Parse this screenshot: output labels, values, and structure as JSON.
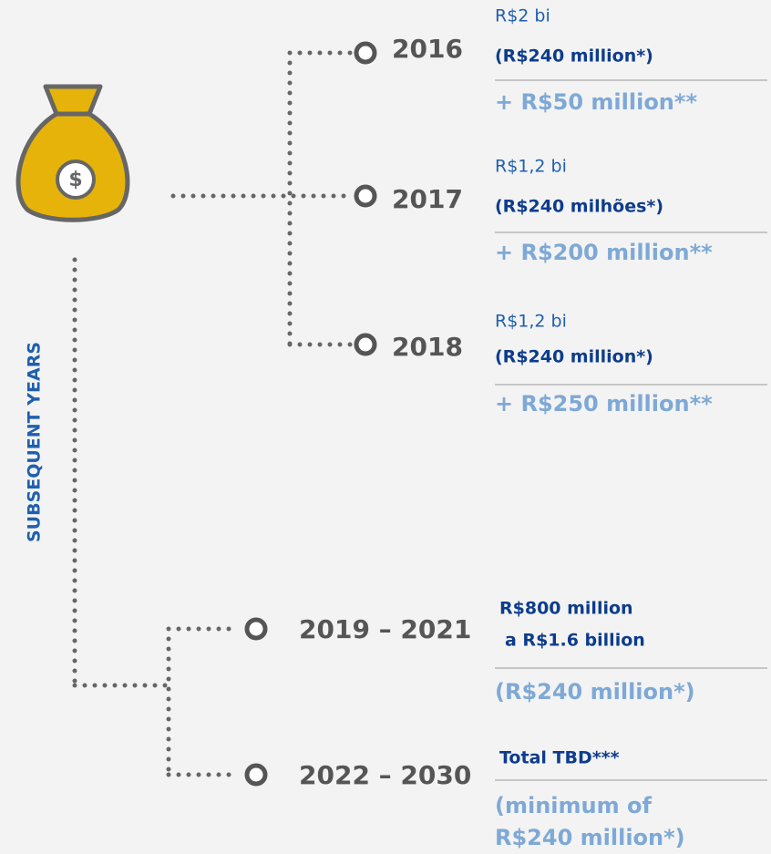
{
  "side_label": "SUBSEQUENT YEARS",
  "entries": [
    {
      "year": "2016",
      "lines": [
        "R$2 bi",
        "(R$240 million*)",
        "+ R$50 million**"
      ]
    },
    {
      "year": "2017",
      "lines": [
        "R$1,2 bi",
        "(R$240 milhões*)",
        "+ R$200 million**"
      ]
    },
    {
      "year": "2018",
      "lines": [
        "R$1,2 bi",
        "(R$240 million*)",
        "+ R$250 million**"
      ]
    },
    {
      "year": "2019 – 2021",
      "lines": [
        "R$800 million",
        "a R$1.6 billion",
        "(R$240 million*)"
      ]
    },
    {
      "year": "2022 – 2030",
      "lines": [
        "Total TBD***",
        "(minimum of",
        "R$240 million*)"
      ]
    }
  ]
}
